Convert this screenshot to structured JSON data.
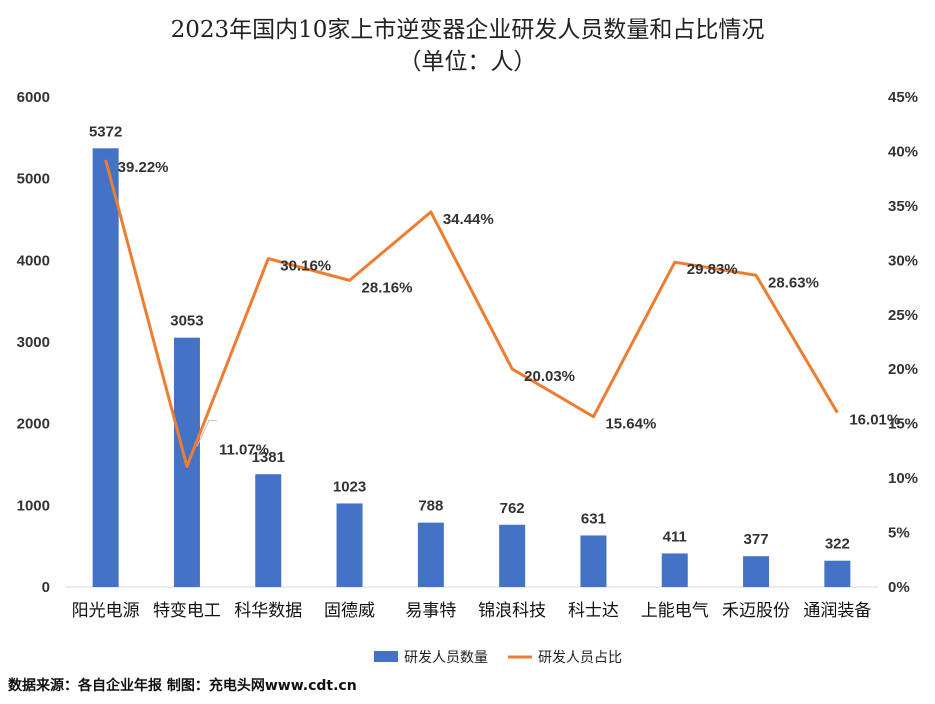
{
  "chart_data": {
    "type": "bar",
    "title": "2023年国内10家上市逆变器企业研发人员数量和占比情况",
    "subtitle": "（单位：人）",
    "categories": [
      "阳光电源",
      "特变电工",
      "科华数据",
      "固德威",
      "易事特",
      "锦浪科技",
      "科士达",
      "上能电气",
      "禾迈股份",
      "通润装备"
    ],
    "series": [
      {
        "name": "研发人员数量",
        "type": "bar",
        "axis": "left",
        "color": "#4472C4",
        "values": [
          5372,
          3053,
          1381,
          1023,
          788,
          762,
          631,
          411,
          377,
          322
        ]
      },
      {
        "name": "研发人员占比",
        "type": "line",
        "axis": "right",
        "color": "#ED7D31",
        "values": [
          39.22,
          11.07,
          30.16,
          28.16,
          34.44,
          20.03,
          15.64,
          29.83,
          28.63,
          16.01
        ]
      }
    ],
    "bar_labels": [
      "5372",
      "3053",
      "1381",
      "1023",
      "788",
      "762",
      "631",
      "411",
      "377",
      "322"
    ],
    "line_labels": [
      "39.22%",
      "11.07%",
      "30.16%",
      "28.16%",
      "34.44%",
      "20.03%",
      "15.64%",
      "29.83%",
      "28.63%",
      "16.01%"
    ],
    "y_left": {
      "min": 0,
      "max": 6000,
      "ticks": [
        "0",
        "1000",
        "2000",
        "3000",
        "4000",
        "5000",
        "6000"
      ]
    },
    "y_right": {
      "min": 0,
      "max": 45,
      "ticks": [
        "0%",
        "5%",
        "10%",
        "15%",
        "20%",
        "25%",
        "30%",
        "35%",
        "40%",
        "45%"
      ]
    },
    "grid": false,
    "legend_position": "bottom"
  },
  "source_note": "数据来源：各自企业年报 制图：充电头网www.cdt.cn"
}
